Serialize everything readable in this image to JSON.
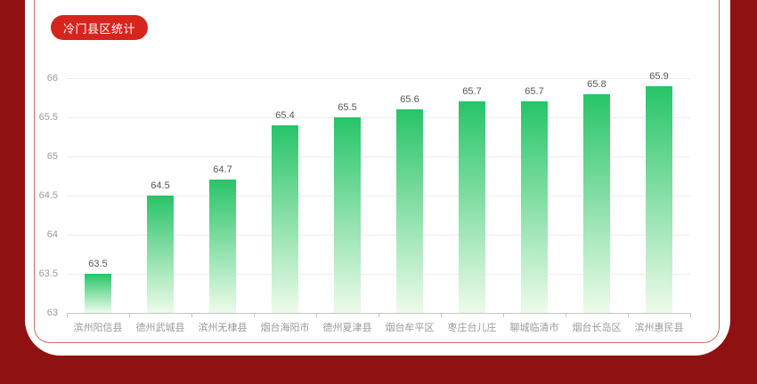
{
  "page": {
    "background_color": "#8f1112",
    "card_color": "#ffffff",
    "panel_border_color": "#cf6a60"
  },
  "header": {
    "title": "冷门县区统计",
    "badge_color": "#d6251c",
    "badge_text_color": "#ffffff"
  },
  "chart_data": {
    "type": "bar",
    "title": "冷门县区统计",
    "categories": [
      "滨州阳信县",
      "德州武城县",
      "滨州无棣县",
      "烟台海阳市",
      "德州夏津县",
      "烟台牟平区",
      "枣庄台儿庄",
      "聊城临清市",
      "烟台长岛区",
      "滨州惠民县"
    ],
    "values": [
      63.5,
      64.5,
      64.7,
      65.4,
      65.5,
      65.6,
      65.7,
      65.7,
      65.8,
      65.9
    ],
    "xlabel": "",
    "ylabel": "",
    "ylim": [
      63,
      66
    ],
    "ytick_step": 0.5,
    "yticks": [
      "66",
      "65.5",
      "65",
      "64.5",
      "64",
      "63.5",
      "63"
    ],
    "grid": true,
    "legend": "none",
    "bar_gradient_top": "#27c468",
    "bar_gradient_bottom": "#edfbe9",
    "value_label_color": "#555555",
    "axis_label_color": "#999999",
    "gridline_color": "#ececec",
    "axis_line_color": "#c4c4c4"
  }
}
